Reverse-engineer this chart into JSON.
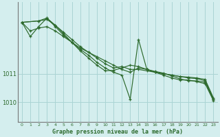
{
  "bg_color": "#d4eeee",
  "grid_color": "#aad4d4",
  "line_color": "#2d6a2d",
  "xlabel": "Graphe pression niveau de la mer (hPa)",
  "xlim": [
    -0.5,
    23.5
  ],
  "ylim": [
    1009.3,
    1013.5
  ],
  "yticks": [
    1010,
    1011
  ],
  "xticks": [
    0,
    1,
    2,
    3,
    4,
    5,
    6,
    7,
    8,
    9,
    10,
    11,
    12,
    13,
    14,
    15,
    16,
    17,
    18,
    19,
    20,
    21,
    22,
    23
  ],
  "series1": {
    "x": [
      0,
      1,
      2,
      3,
      4,
      5,
      6,
      7,
      8,
      9,
      10,
      11,
      12,
      13,
      14,
      15,
      16,
      17,
      18,
      19,
      20,
      21,
      22,
      23
    ],
    "y": [
      1012.8,
      1012.5,
      1012.6,
      1012.65,
      1012.5,
      1012.3,
      1012.1,
      1011.9,
      1011.75,
      1011.6,
      1011.45,
      1011.3,
      1011.15,
      1011.05,
      1011.2,
      1011.15,
      1011.05,
      1011.0,
      1010.95,
      1010.9,
      1010.88,
      1010.85,
      1010.8,
      1010.15
    ]
  },
  "series2": {
    "x": [
      0,
      2,
      3,
      4,
      5,
      6,
      7,
      8,
      9,
      10,
      11,
      12,
      13,
      14,
      15,
      16,
      17,
      18,
      19,
      20,
      21,
      22,
      23
    ],
    "y": [
      1012.8,
      1012.85,
      1012.9,
      1012.7,
      1012.45,
      1012.2,
      1011.95,
      1011.75,
      1011.55,
      1011.35,
      1011.2,
      1011.25,
      1011.15,
      1011.15,
      1011.1,
      1011.05,
      1011.0,
      1010.95,
      1010.9,
      1010.85,
      1010.83,
      1010.75,
      1010.1
    ]
  },
  "series3": {
    "x": [
      0,
      1,
      2,
      3,
      4,
      5,
      6,
      7,
      8,
      9,
      10,
      11,
      12,
      13,
      14,
      15,
      16,
      17,
      18,
      19,
      20,
      21,
      22,
      23
    ],
    "y": [
      1012.8,
      1012.3,
      1012.65,
      1012.95,
      1012.65,
      1012.35,
      1012.1,
      1011.85,
      1011.65,
      1011.4,
      1011.2,
      1011.05,
      1010.95,
      1010.1,
      1012.2,
      1011.15,
      1011.05,
      1010.95,
      1010.85,
      1010.78,
      1010.78,
      1010.72,
      1010.65,
      1010.05
    ]
  },
  "series4": {
    "x": [
      0,
      2,
      3,
      4,
      5,
      6,
      7,
      8,
      9,
      10,
      11,
      12,
      13,
      14,
      15,
      16,
      17,
      18,
      19,
      20,
      21,
      22,
      23
    ],
    "y": [
      1012.8,
      1012.85,
      1012.95,
      1012.7,
      1012.4,
      1012.1,
      1011.8,
      1011.55,
      1011.3,
      1011.1,
      1011.12,
      1011.2,
      1011.3,
      1011.25,
      1011.15,
      1011.08,
      1011.02,
      1010.92,
      1010.82,
      1010.75,
      1010.75,
      1010.7,
      1010.1
    ]
  }
}
